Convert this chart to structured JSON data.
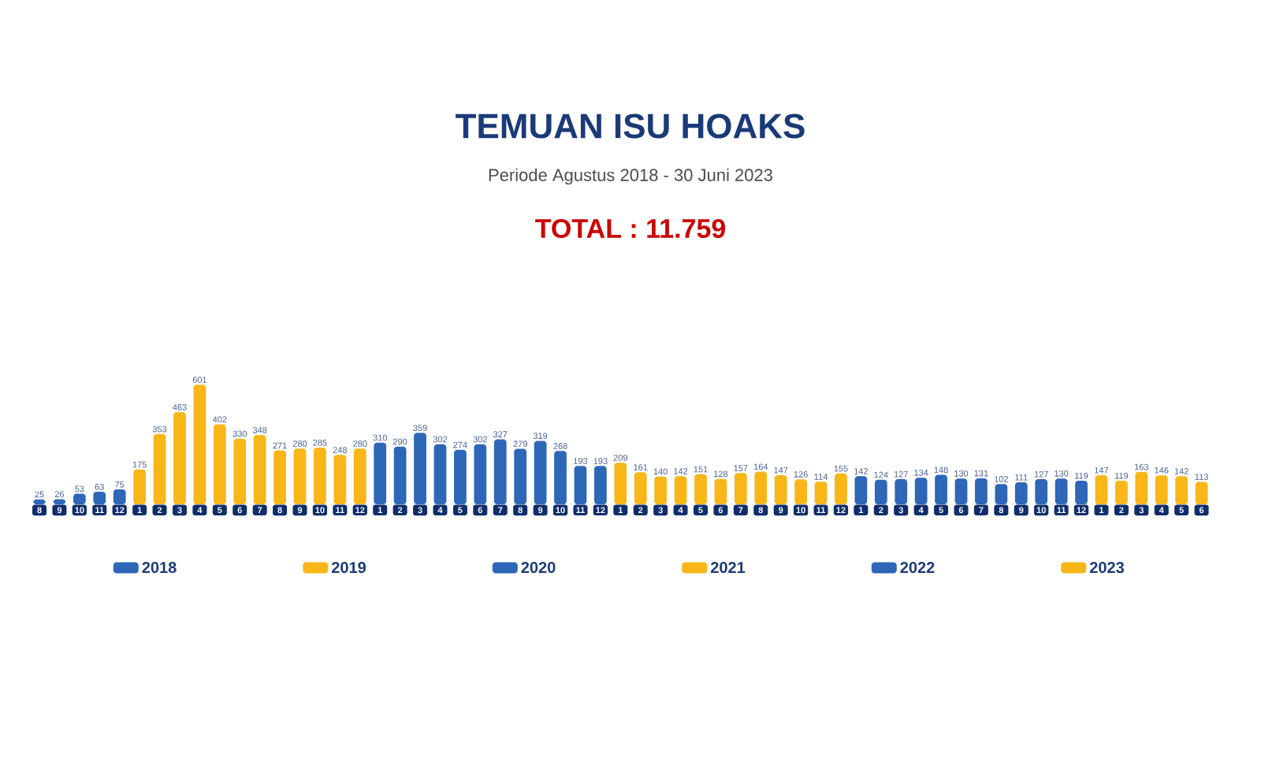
{
  "chart_data": {
    "type": "bar",
    "title": "TEMUAN ISU HOAKS",
    "subtitle": "Periode Agustus 2018 - 30 Juni 2023",
    "annotations": [
      "TOTAL : 11.759"
    ],
    "categories": [
      "8",
      "9",
      "10",
      "11",
      "12",
      "1",
      "2",
      "3",
      "4",
      "5",
      "6",
      "7",
      "8",
      "9",
      "10",
      "11",
      "12",
      "1",
      "2",
      "3",
      "4",
      "5",
      "6",
      "7",
      "8",
      "9",
      "10",
      "11",
      "12",
      "1",
      "2",
      "3",
      "4",
      "5",
      "6",
      "7",
      "8",
      "9",
      "10",
      "11",
      "12",
      "1",
      "2",
      "3",
      "4",
      "5",
      "6",
      "7",
      "8",
      "9",
      "10",
      "11",
      "12",
      "1",
      "2",
      "3",
      "4",
      "5",
      "6"
    ],
    "series": [
      {
        "name": "2018",
        "color": "#2e67b8",
        "values": [
          25,
          26,
          53,
          63,
          75,
          null,
          null,
          null,
          null,
          null,
          null,
          null,
          null,
          null,
          null,
          null,
          null,
          null,
          null,
          null,
          null,
          null,
          null,
          null,
          null,
          null,
          null,
          null,
          null,
          null,
          null,
          null,
          null,
          null,
          null,
          null,
          null,
          null,
          null,
          null,
          null,
          null,
          null,
          null,
          null,
          null,
          null,
          null,
          null,
          null,
          null,
          null,
          null,
          null,
          null,
          null,
          null,
          null,
          null
        ]
      },
      {
        "name": "2019",
        "color": "#f8b619",
        "values": [
          null,
          null,
          null,
          null,
          null,
          175,
          353,
          463,
          601,
          402,
          330,
          348,
          271,
          280,
          285,
          248,
          280,
          null,
          null,
          null,
          null,
          null,
          null,
          null,
          null,
          null,
          null,
          null,
          null,
          null,
          null,
          null,
          null,
          null,
          null,
          null,
          null,
          null,
          null,
          null,
          null,
          null,
          null,
          null,
          null,
          null,
          null,
          null,
          null,
          null,
          null,
          null,
          null,
          null,
          null,
          null,
          null,
          null,
          null
        ]
      },
      {
        "name": "2020",
        "color": "#2e67b8",
        "values": [
          null,
          null,
          null,
          null,
          null,
          null,
          null,
          null,
          null,
          null,
          null,
          null,
          null,
          null,
          null,
          null,
          null,
          310,
          290,
          359,
          302,
          274,
          302,
          327,
          279,
          319,
          268,
          193,
          193,
          null,
          null,
          null,
          null,
          null,
          null,
          null,
          null,
          null,
          null,
          null,
          null,
          null,
          null,
          null,
          null,
          null,
          null,
          null,
          null,
          null,
          null,
          null,
          null,
          null,
          null,
          null,
          null,
          null,
          null
        ]
      },
      {
        "name": "2021",
        "color": "#f8b619",
        "values": [
          null,
          null,
          null,
          null,
          null,
          null,
          null,
          null,
          null,
          null,
          null,
          null,
          null,
          null,
          null,
          null,
          null,
          null,
          null,
          null,
          null,
          null,
          null,
          null,
          null,
          null,
          null,
          null,
          null,
          209,
          161,
          140,
          142,
          151,
          128,
          157,
          164,
          147,
          126,
          114,
          155,
          null,
          null,
          null,
          null,
          null,
          null,
          null,
          null,
          null,
          null,
          null,
          null,
          null,
          null,
          null,
          null,
          null,
          null
        ]
      },
      {
        "name": "2022",
        "color": "#2e67b8",
        "values": [
          null,
          null,
          null,
          null,
          null,
          null,
          null,
          null,
          null,
          null,
          null,
          null,
          null,
          null,
          null,
          null,
          null,
          null,
          null,
          null,
          null,
          null,
          null,
          null,
          null,
          null,
          null,
          null,
          null,
          null,
          null,
          null,
          null,
          null,
          null,
          null,
          null,
          null,
          null,
          null,
          null,
          142,
          124,
          127,
          134,
          148,
          130,
          131,
          102,
          111,
          127,
          130,
          119,
          null,
          null,
          null,
          null,
          null,
          null
        ]
      },
      {
        "name": "2023",
        "color": "#f8b619",
        "values": [
          null,
          null,
          null,
          null,
          null,
          null,
          null,
          null,
          null,
          null,
          null,
          null,
          null,
          null,
          null,
          null,
          null,
          null,
          null,
          null,
          null,
          null,
          null,
          null,
          null,
          null,
          null,
          null,
          null,
          null,
          null,
          null,
          null,
          null,
          null,
          null,
          null,
          null,
          null,
          null,
          null,
          null,
          null,
          null,
          null,
          null,
          null,
          null,
          null,
          null,
          null,
          null,
          null,
          147,
          119,
          163,
          146,
          142,
          113
        ]
      }
    ],
    "data_labels": true,
    "legend": "bottom"
  }
}
